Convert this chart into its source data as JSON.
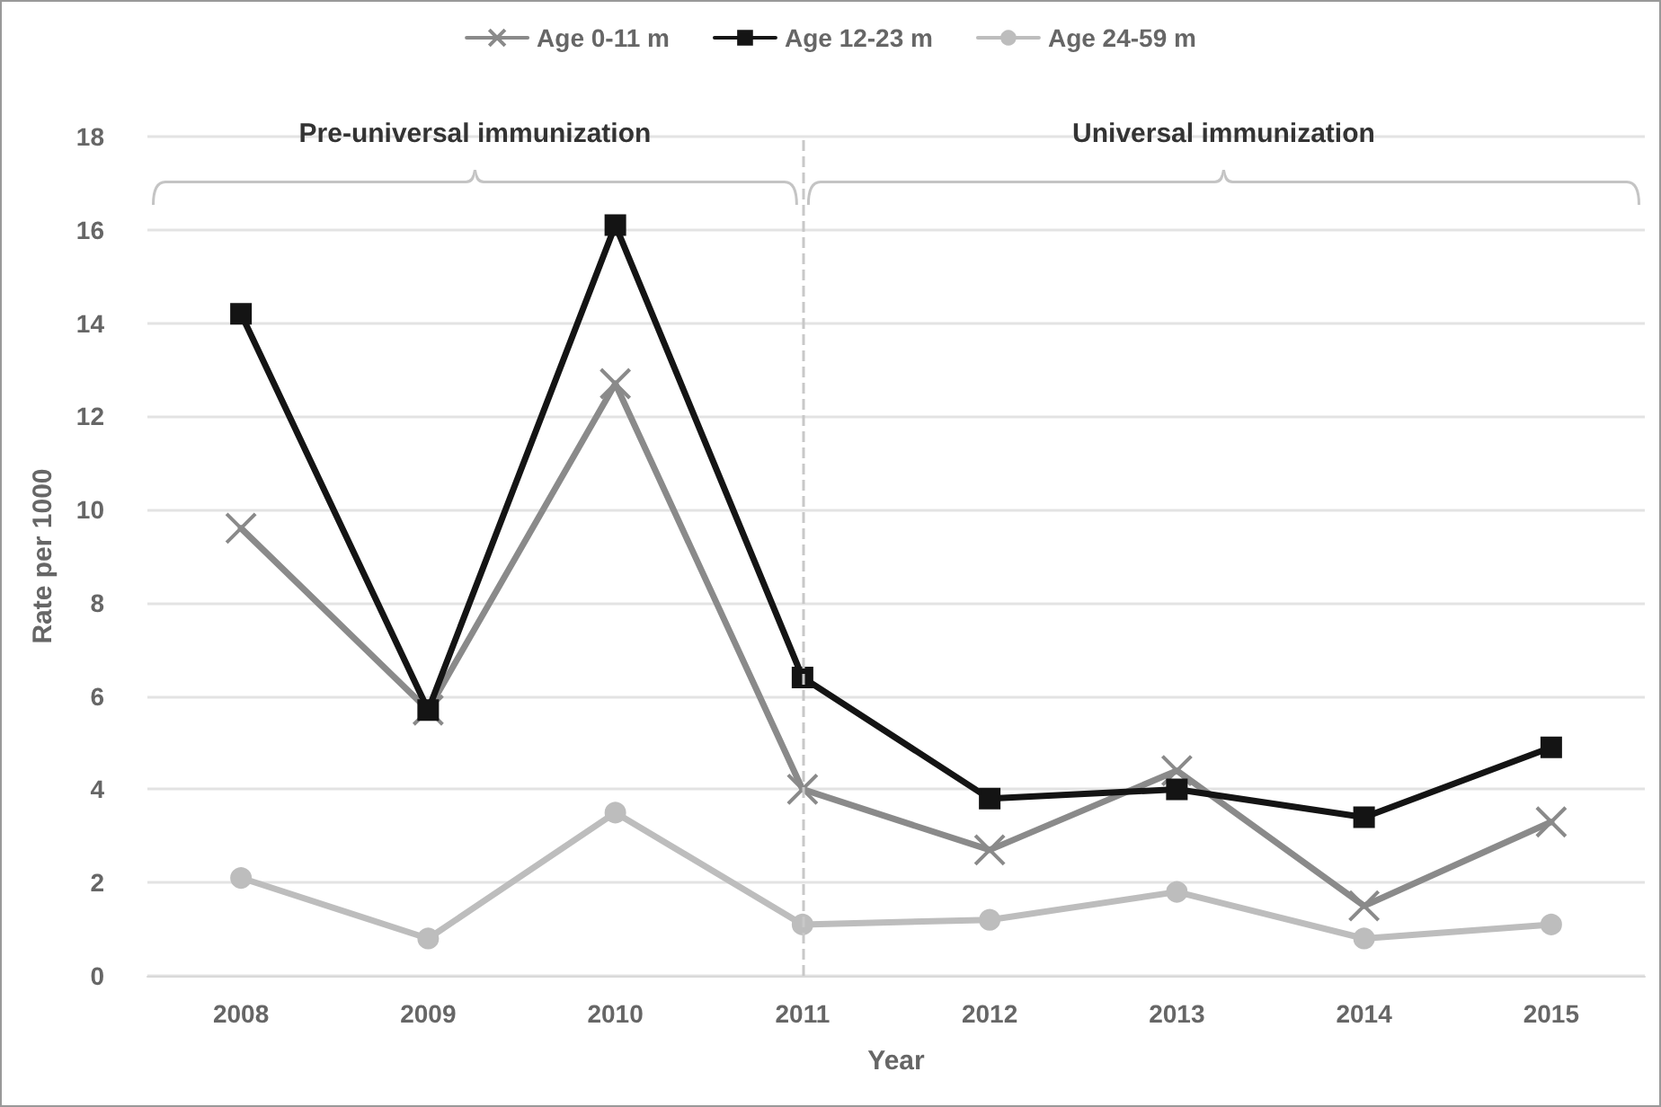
{
  "chart_data": {
    "type": "line",
    "xlabel": "Year",
    "ylabel": "Rate per 1000",
    "categories": [
      "2008",
      "2009",
      "2010",
      "2011",
      "2012",
      "2013",
      "2014",
      "2015"
    ],
    "series": [
      {
        "name": "Age 0-11 m",
        "color": "#8a8a8a",
        "marker": "cross",
        "values": [
          9.6,
          5.7,
          12.7,
          4.0,
          2.7,
          4.4,
          1.5,
          3.3
        ]
      },
      {
        "name": "Age 12-23 m",
        "color": "#141414",
        "marker": "square",
        "values": [
          14.2,
          5.7,
          16.1,
          6.4,
          3.8,
          4.0,
          3.4,
          4.9
        ]
      },
      {
        "name": "Age 24-59 m",
        "color": "#bdbdbd",
        "marker": "circle",
        "values": [
          2.1,
          0.8,
          3.5,
          1.1,
          1.2,
          1.8,
          0.8,
          1.1
        ]
      }
    ],
    "ylim": [
      0,
      18
    ],
    "yticks": [
      0,
      2,
      4,
      6,
      8,
      10,
      12,
      14,
      16,
      18
    ],
    "grid": "y",
    "legend": "top",
    "ref_lines": [
      {
        "axis": "x",
        "value": "2011",
        "color": "#c8c8c8",
        "line_style": "dashed"
      }
    ],
    "annotations": [
      "Pre-universal immunization",
      "Universal immunization"
    ]
  }
}
